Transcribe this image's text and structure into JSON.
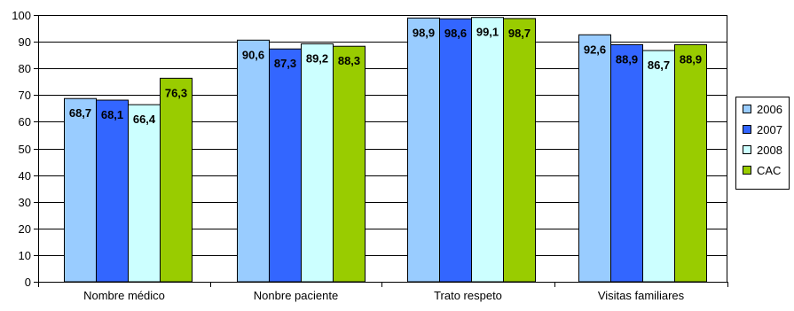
{
  "chart_data": {
    "type": "bar",
    "categories": [
      "Nombre médico",
      "Nonbre paciente",
      "Trato respeto",
      "Visitas familiares"
    ],
    "series": [
      {
        "name": "2006",
        "values": [
          68.7,
          90.6,
          98.9,
          92.6
        ],
        "labels": [
          "68,7",
          "90,6",
          "98,9",
          "92,6"
        ],
        "color": "#99ccff"
      },
      {
        "name": "2007",
        "values": [
          68.1,
          87.3,
          98.6,
          88.9
        ],
        "labels": [
          "68,1",
          "87,3",
          "98,6",
          "88,9"
        ],
        "color": "#3366ff"
      },
      {
        "name": "2008",
        "values": [
          66.4,
          89.2,
          99.1,
          86.7
        ],
        "labels": [
          "66,4",
          "89,2",
          "99,1",
          "86,7"
        ],
        "color": "#ccffff"
      },
      {
        "name": "CAC",
        "values": [
          76.3,
          88.3,
          98.7,
          88.9
        ],
        "labels": [
          "76,3",
          "88,3",
          "98,7",
          "88,9"
        ],
        "color": "#99cc00"
      }
    ],
    "yticks": [
      "0",
      "10",
      "20",
      "30",
      "40",
      "50",
      "60",
      "70",
      "80",
      "90",
      "100"
    ],
    "ylim": [
      0,
      100
    ],
    "grid": true,
    "legend_position": "right"
  }
}
